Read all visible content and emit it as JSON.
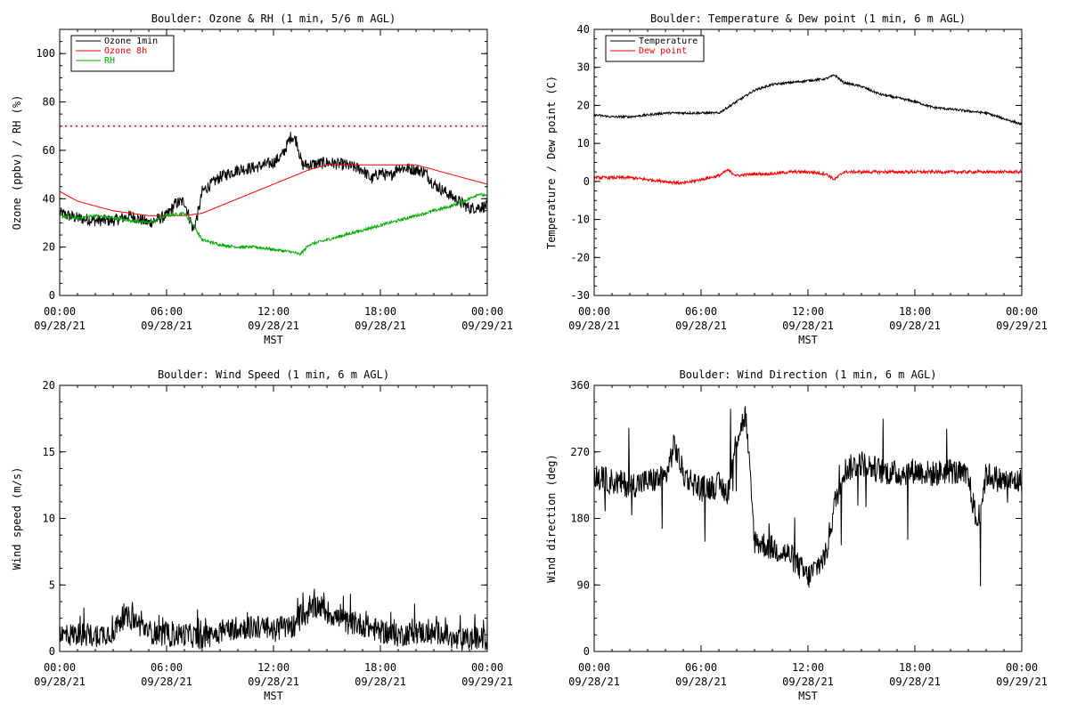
{
  "chart_data": [
    {
      "id": "ozone",
      "type": "line",
      "title": "Boulder: Ozone & RH (1 min, 5/6 m AGL)",
      "xlabel": "MST",
      "ylabel": "Ozone (ppbv) / RH (%)",
      "xlim": [
        "09/28/21 00:00",
        "09/29/21 00:00"
      ],
      "ylim": [
        0,
        110
      ],
      "yticks": [
        0,
        20,
        40,
        60,
        80,
        100
      ],
      "xticks": [
        {
          "time": "00:00",
          "date": "09/28/21"
        },
        {
          "time": "06:00",
          "date": "09/28/21"
        },
        {
          "time": "12:00",
          "date": "09/28/21"
        },
        {
          "time": "18:00",
          "date": "09/28/21"
        },
        {
          "time": "00:00",
          "date": "09/29/21"
        }
      ],
      "legend_position": "top-left",
      "reference_line": {
        "y": 70,
        "color": "#ff0000",
        "style": "dotted"
      },
      "series": [
        {
          "name": "Ozone 1min",
          "color": "#000000",
          "x": [
            0,
            1,
            2,
            3,
            4,
            5,
            6,
            6.5,
            7,
            7.5,
            7.8,
            8,
            9,
            10,
            11,
            12,
            12.5,
            13,
            13.3,
            13.6,
            14,
            15,
            16,
            17,
            17.5,
            18,
            18.5,
            19,
            20,
            20.5,
            21,
            22,
            23,
            24
          ],
          "y": [
            34,
            32,
            31,
            31,
            33,
            30,
            33,
            38,
            39,
            27,
            35,
            43,
            49,
            52,
            53,
            55,
            58,
            66,
            64,
            54,
            54,
            55,
            54,
            52,
            48,
            51,
            49,
            53,
            52,
            51,
            46,
            41,
            36,
            37
          ],
          "noise": 2.5
        },
        {
          "name": "Ozone 8h",
          "color": "#ff0000",
          "x": [
            0,
            1,
            2,
            3,
            4,
            5,
            6,
            7,
            8,
            9,
            10,
            11,
            12,
            13,
            14,
            15,
            16,
            17,
            18,
            19,
            20,
            21,
            22,
            23,
            24
          ],
          "y": [
            43,
            39,
            37,
            35,
            34,
            33,
            33,
            33,
            34,
            37,
            40,
            43,
            46,
            49,
            52,
            54,
            54,
            54,
            54,
            54,
            54,
            52,
            50,
            48,
            46
          ],
          "noise": 0
        },
        {
          "name": "RH",
          "color": "#00aa00",
          "x": [
            0,
            1,
            2,
            3,
            4,
            5,
            6,
            7,
            7.5,
            8,
            9,
            10,
            11,
            12,
            13,
            13.5,
            14,
            15,
            16,
            17,
            18,
            19,
            20,
            21,
            22,
            23,
            23.5,
            24
          ],
          "y": [
            33,
            32,
            33,
            32,
            31,
            30,
            33,
            34,
            29,
            23,
            21,
            20,
            20,
            19,
            18,
            17,
            21,
            23,
            25,
            27,
            29,
            31,
            33,
            35,
            37,
            40,
            42,
            41
          ],
          "noise": 0.6
        }
      ]
    },
    {
      "id": "temperature",
      "type": "line",
      "title": "Boulder: Temperature & Dew point (1 min, 6 m AGL)",
      "xlabel": "MST",
      "ylabel": "Temperature / Dew point (C)",
      "xlim": [
        "09/28/21 00:00",
        "09/29/21 00:00"
      ],
      "ylim": [
        -30,
        40
      ],
      "yticks": [
        -30,
        -20,
        -10,
        0,
        10,
        20,
        30,
        40
      ],
      "xticks": [
        {
          "time": "00:00",
          "date": "09/28/21"
        },
        {
          "time": "06:00",
          "date": "09/28/21"
        },
        {
          "time": "12:00",
          "date": "09/28/21"
        },
        {
          "time": "18:00",
          "date": "09/28/21"
        },
        {
          "time": "00:00",
          "date": "09/29/21"
        }
      ],
      "legend_position": "top-left",
      "series": [
        {
          "name": "Temperature",
          "color": "#000000",
          "x": [
            0,
            1,
            2,
            3,
            4,
            5,
            6,
            7,
            8,
            9,
            10,
            11,
            12,
            13,
            13.5,
            14,
            15,
            16,
            17,
            18,
            19,
            20,
            21,
            22,
            23,
            24
          ],
          "y": [
            17.5,
            17,
            17,
            17.5,
            18,
            18,
            18,
            18,
            21,
            24,
            25.5,
            26,
            26.5,
            27,
            28,
            26,
            25,
            23,
            22,
            21,
            19.5,
            19,
            18.5,
            18,
            16.5,
            15
          ],
          "noise": 0.3
        },
        {
          "name": "Dew point",
          "color": "#ff0000",
          "x": [
            0,
            1,
            2,
            3,
            4,
            5,
            6,
            7,
            7.5,
            8,
            9,
            10,
            11,
            12,
            13,
            13.5,
            14,
            15,
            16,
            17,
            18,
            19,
            20,
            21,
            22,
            23,
            24
          ],
          "y": [
            1,
            1,
            1,
            0.5,
            0,
            -0.5,
            0.5,
            1.5,
            3,
            1.5,
            2,
            2,
            2.5,
            2.5,
            2,
            0.5,
            2.5,
            2.5,
            2.5,
            2.5,
            2.5,
            2.5,
            2.5,
            2.5,
            2.5,
            2.5,
            2.5
          ],
          "noise": 0.4
        }
      ]
    },
    {
      "id": "windspeed",
      "type": "line",
      "title": "Boulder: Wind Speed (1 min, 6 m AGL)",
      "xlabel": "MST",
      "ylabel": "Wind speed (m/s)",
      "xlim": [
        "09/28/21 00:00",
        "09/29/21 00:00"
      ],
      "ylim": [
        0,
        20
      ],
      "yticks": [
        0,
        5,
        10,
        15,
        20
      ],
      "xticks": [
        {
          "time": "00:00",
          "date": "09/28/21"
        },
        {
          "time": "06:00",
          "date": "09/28/21"
        },
        {
          "time": "12:00",
          "date": "09/28/21"
        },
        {
          "time": "18:00",
          "date": "09/28/21"
        },
        {
          "time": "00:00",
          "date": "09/29/21"
        }
      ],
      "series": [
        {
          "name": "",
          "color": "#000000",
          "x": [
            0,
            1,
            2,
            3,
            3.5,
            4,
            5,
            6,
            7,
            8,
            9,
            10,
            11,
            12,
            13,
            14,
            14.5,
            15,
            16,
            17,
            18,
            19,
            20,
            21,
            21.5,
            22,
            23,
            24
          ],
          "y": [
            1.2,
            1.3,
            1.2,
            1.5,
            2.5,
            2.5,
            1.5,
            1.2,
            1.3,
            1.0,
            1.5,
            1.8,
            1.8,
            1.6,
            1.8,
            3,
            3.5,
            3,
            2.2,
            2.0,
            1.5,
            1.2,
            1.5,
            1.3,
            1.5,
            0.8,
            0.9,
            1.0
          ],
          "noise": 0.9
        }
      ]
    },
    {
      "id": "winddir",
      "type": "line",
      "title": "Boulder: Wind Direction (1 min, 6 m AGL)",
      "xlabel": "MST",
      "ylabel": "Wind direction (deg)",
      "xlim": [
        "09/28/21 00:00",
        "09/29/21 00:00"
      ],
      "ylim": [
        0,
        360
      ],
      "yticks": [
        0,
        90,
        180,
        270,
        360
      ],
      "xticks": [
        {
          "time": "00:00",
          "date": "09/28/21"
        },
        {
          "time": "06:00",
          "date": "09/28/21"
        },
        {
          "time": "12:00",
          "date": "09/28/21"
        },
        {
          "time": "18:00",
          "date": "09/28/21"
        },
        {
          "time": "00:00",
          "date": "09/29/21"
        }
      ],
      "series": [
        {
          "name": "",
          "color": "#000000",
          "x": [
            0,
            1,
            2,
            3,
            4,
            4.5,
            5,
            6,
            7,
            7.5,
            8,
            8.5,
            9,
            10,
            11,
            12,
            13,
            13.5,
            14,
            15,
            16,
            17,
            18,
            19,
            20,
            21,
            21.5,
            22,
            23,
            24
          ],
          "y": [
            235,
            230,
            225,
            230,
            235,
            280,
            240,
            220,
            225,
            215,
            290,
            320,
            150,
            140,
            130,
            100,
            130,
            200,
            245,
            255,
            245,
            240,
            245,
            240,
            245,
            235,
            170,
            240,
            230,
            230
          ],
          "noise": 18
        }
      ]
    }
  ]
}
